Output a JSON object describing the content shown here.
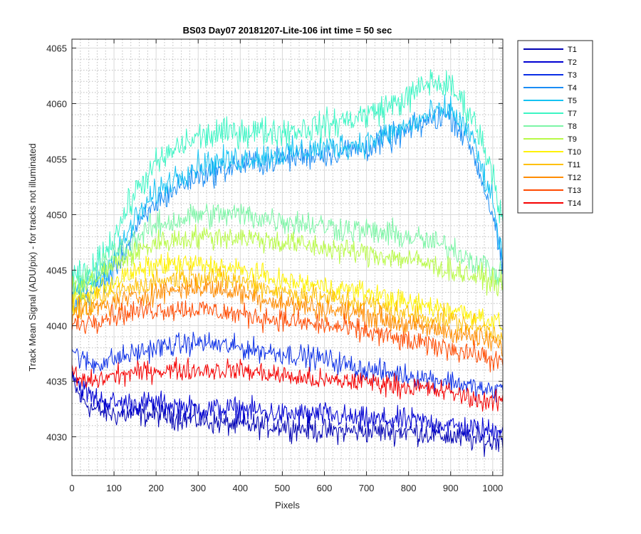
{
  "chart_data": {
    "type": "line",
    "title": "BS03 Day07 20181207-Lite-106 int time = 50 sec",
    "xlabel": "Pixels",
    "ylabel": "Track Mean Signal (ADU/pix) - for tracks not illuminated",
    "xlim": [
      0,
      1024
    ],
    "ylim": [
      4026.5,
      4065.8
    ],
    "xticks": [
      0,
      100,
      200,
      300,
      400,
      500,
      600,
      700,
      800,
      900,
      1000
    ],
    "yticks": [
      4030,
      4035,
      4040,
      4045,
      4050,
      4055,
      4060,
      4065
    ],
    "grid": "major and minor",
    "legend_position": "outside-right",
    "noise_note": "Each series is a noisy per-pixel trace; values below are the smoothed trend at each control x, amp is the peak-to-peak noise half-width.",
    "series": [
      {
        "name": "T1",
        "color": "#0000B2",
        "amp": 1.6,
        "x": [
          0,
          20,
          50,
          100,
          200,
          300,
          400,
          500,
          600,
          700,
          800,
          900,
          1000,
          1024
        ],
        "values": [
          4035.0,
          4033.5,
          4032.5,
          4032.0,
          4032.0,
          4031.5,
          4031.0,
          4031.0,
          4030.5,
          4030.5,
          4030.5,
          4030.0,
          4029.5,
          4030.0
        ]
      },
      {
        "name": "T2",
        "color": "#0000D2",
        "amp": 1.6,
        "x": [
          0,
          20,
          50,
          100,
          200,
          300,
          400,
          500,
          600,
          700,
          800,
          900,
          1000,
          1024
        ],
        "values": [
          4036.0,
          4034.5,
          4033.5,
          4033.0,
          4033.0,
          4032.5,
          4032.5,
          4032.0,
          4032.0,
          4031.5,
          4031.5,
          4031.0,
          4030.5,
          4031.0
        ]
      },
      {
        "name": "T3",
        "color": "#0A2EE6",
        "amp": 1.5,
        "x": [
          0,
          20,
          50,
          100,
          200,
          300,
          400,
          500,
          600,
          700,
          800,
          900,
          1000,
          1024
        ],
        "values": [
          4038.0,
          4037.0,
          4036.5,
          4037.0,
          4038.0,
          4038.5,
          4038.0,
          4037.5,
          4037.0,
          4036.0,
          4035.5,
          4035.0,
          4034.0,
          4034.5
        ]
      },
      {
        "name": "T4",
        "color": "#1A8CF5",
        "amp": 1.8,
        "x": [
          0,
          50,
          100,
          150,
          200,
          250,
          300,
          400,
          500,
          600,
          700,
          800,
          850,
          900,
          950,
          1000,
          1024
        ],
        "values": [
          4042.0,
          4043.0,
          4045.0,
          4048.5,
          4051.0,
          4052.5,
          4053.5,
          4054.5,
          4055.0,
          4055.5,
          4056.0,
          4057.5,
          4058.5,
          4059.0,
          4056.0,
          4050.0,
          4045.0
        ]
      },
      {
        "name": "T5",
        "color": "#14C2F2",
        "amp": 1.8,
        "x": [
          0,
          50,
          100,
          150,
          200,
          250,
          300,
          400,
          500,
          600,
          700,
          800,
          850,
          900,
          950,
          1000,
          1024
        ],
        "values": [
          4043.0,
          4044.0,
          4046.0,
          4049.5,
          4052.0,
          4053.5,
          4054.5,
          4055.0,
          4055.5,
          4056.0,
          4056.5,
          4058.0,
          4059.0,
          4059.5,
          4057.0,
          4051.0,
          4046.0
        ]
      },
      {
        "name": "T7",
        "color": "#3CF5C4",
        "amp": 2.0,
        "x": [
          0,
          50,
          100,
          150,
          200,
          250,
          300,
          400,
          500,
          600,
          700,
          800,
          850,
          900,
          950,
          1000,
          1024
        ],
        "values": [
          4044.0,
          4045.0,
          4048.0,
          4052.0,
          4054.5,
          4056.0,
          4057.0,
          4057.5,
          4057.5,
          4058.0,
          4059.0,
          4060.5,
          4062.0,
          4061.5,
          4059.0,
          4054.0,
          4049.0
        ]
      },
      {
        "name": "T8",
        "color": "#7CF5A6",
        "amp": 1.8,
        "x": [
          0,
          50,
          100,
          200,
          300,
          400,
          500,
          600,
          700,
          800,
          900,
          1000,
          1024
        ],
        "values": [
          4043.5,
          4044.5,
          4046.5,
          4049.0,
          4050.0,
          4050.0,
          4049.5,
          4049.0,
          4048.5,
          4048.0,
          4047.0,
          4045.0,
          4044.0
        ]
      },
      {
        "name": "T9",
        "color": "#B8FA46",
        "amp": 1.6,
        "x": [
          0,
          50,
          100,
          200,
          300,
          400,
          500,
          600,
          700,
          800,
          900,
          1000,
          1024
        ],
        "values": [
          4043.0,
          4044.0,
          4045.5,
          4047.5,
          4048.0,
          4048.0,
          4047.5,
          4047.0,
          4046.5,
          4046.0,
          4045.0,
          4044.0,
          4043.5
        ]
      },
      {
        "name": "T10",
        "color": "#FFF200",
        "amp": 1.5,
        "x": [
          0,
          50,
          100,
          200,
          300,
          400,
          500,
          600,
          700,
          800,
          900,
          1000,
          1024
        ],
        "values": [
          4042.0,
          4043.0,
          4044.0,
          4045.5,
          4045.5,
          4045.0,
          4044.0,
          4043.5,
          4043.0,
          4042.0,
          4041.5,
          4040.5,
          4040.0
        ]
      },
      {
        "name": "T11",
        "color": "#FFC000",
        "amp": 1.5,
        "x": [
          0,
          50,
          100,
          200,
          300,
          400,
          500,
          600,
          700,
          800,
          900,
          1000,
          1024
        ],
        "values": [
          4041.5,
          4042.0,
          4043.0,
          4044.0,
          4044.5,
          4044.0,
          4043.0,
          4042.5,
          4042.0,
          4041.0,
          4040.5,
          4039.5,
          4039.0
        ]
      },
      {
        "name": "T12",
        "color": "#FF8C00",
        "amp": 1.5,
        "x": [
          0,
          50,
          100,
          200,
          300,
          400,
          500,
          600,
          700,
          800,
          900,
          1000,
          1024
        ],
        "values": [
          4041.0,
          4041.5,
          4042.0,
          4043.0,
          4043.5,
          4043.0,
          4042.0,
          4041.5,
          4041.0,
          4040.0,
          4039.5,
          4038.5,
          4038.0
        ]
      },
      {
        "name": "T13",
        "color": "#FF4A00",
        "amp": 1.5,
        "x": [
          0,
          50,
          100,
          200,
          300,
          400,
          500,
          600,
          700,
          800,
          900,
          1000,
          1024
        ],
        "values": [
          4040.0,
          4040.5,
          4041.0,
          4041.5,
          4041.5,
          4041.0,
          4040.5,
          4040.0,
          4039.5,
          4038.5,
          4038.0,
          4037.0,
          4036.5
        ]
      },
      {
        "name": "T14",
        "color": "#F50000",
        "amp": 1.4,
        "x": [
          0,
          20,
          50,
          100,
          200,
          300,
          400,
          500,
          600,
          700,
          800,
          900,
          1000,
          1024
        ],
        "values": [
          4036.0,
          4035.0,
          4035.0,
          4035.5,
          4036.0,
          4036.0,
          4036.0,
          4035.5,
          4035.0,
          4035.0,
          4034.5,
          4034.0,
          4033.0,
          4033.5
        ]
      }
    ]
  }
}
